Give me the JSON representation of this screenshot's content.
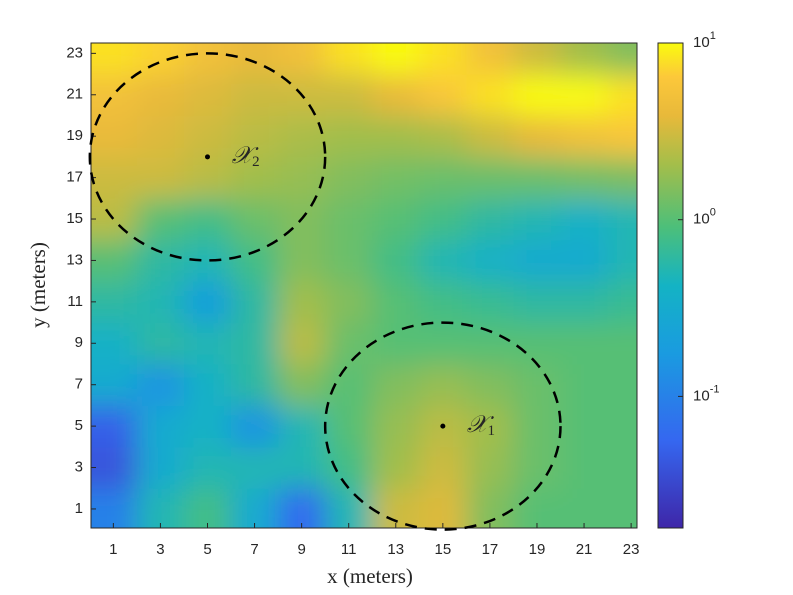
{
  "chart_data": {
    "type": "heatmap",
    "x_label": "x (meters)",
    "y_label": "y (meters)",
    "x": [
      1,
      3,
      5,
      7,
      9,
      11,
      13,
      15,
      17,
      19,
      21,
      23
    ],
    "y": [
      1,
      3,
      5,
      7,
      9,
      11,
      13,
      15,
      17,
      19,
      21,
      23
    ],
    "z": [
      [
        0.1,
        0.5,
        0.8,
        0.3,
        0.06,
        0.5,
        3,
        3.5,
        1.5,
        1,
        1,
        1
      ],
      [
        0.04,
        0.3,
        0.5,
        0.5,
        0.5,
        0.8,
        2,
        3,
        1.8,
        1.2,
        1,
        1
      ],
      [
        0.05,
        0.3,
        0.4,
        0.15,
        0.5,
        1,
        1.8,
        2.5,
        2,
        1.2,
        1,
        1
      ],
      [
        0.3,
        0.15,
        0.4,
        0.6,
        1.5,
        1,
        1.5,
        1.8,
        1.5,
        1.2,
        1,
        1
      ],
      [
        0.4,
        0.6,
        0.5,
        0.6,
        2.5,
        1.2,
        1,
        1,
        1,
        1,
        1,
        1
      ],
      [
        0.6,
        0.5,
        0.2,
        0.6,
        2,
        1.5,
        1,
        0.8,
        0.7,
        0.6,
        0.6,
        0.7
      ],
      [
        1,
        0.6,
        0.5,
        0.8,
        1.5,
        1.2,
        0.8,
        0.5,
        0.4,
        0.3,
        0.3,
        0.5
      ],
      [
        2.5,
        1,
        0.8,
        1.2,
        1.5,
        1.2,
        1,
        0.8,
        0.6,
        0.5,
        0.4,
        0.5
      ],
      [
        3,
        3,
        2.5,
        2,
        1.8,
        1.5,
        1.3,
        1.2,
        1.2,
        1.2,
        1.3,
        1.4
      ],
      [
        4,
        3.5,
        3,
        2.5,
        2.2,
        2,
        2,
        2.2,
        3,
        4,
        5,
        6
      ],
      [
        5,
        4,
        3.5,
        3,
        3,
        3,
        4,
        6,
        8,
        10,
        10,
        8
      ],
      [
        8,
        7,
        5,
        4,
        5,
        8,
        10,
        8,
        5,
        3,
        2,
        1.5
      ]
    ],
    "colormap": "parula",
    "color_scale": "log",
    "clim": [
      0.018,
      10
    ],
    "colorbar_ticks": [
      {
        "value": 0.1,
        "label": "10^-1"
      },
      {
        "value": 1,
        "label": "10^0"
      },
      {
        "value": 10,
        "label": "10^1"
      }
    ],
    "xlim": [
      0.05,
      23.25
    ],
    "ylim": [
      0.08,
      23.5
    ],
    "xticks": [
      1,
      3,
      5,
      7,
      9,
      11,
      13,
      15,
      17,
      19,
      21,
      23
    ],
    "yticks": [
      1,
      3,
      5,
      7,
      9,
      11,
      13,
      15,
      17,
      19,
      21,
      23
    ],
    "circles": [
      {
        "center": [
          15,
          5
        ],
        "radius": 5,
        "label": "𝒳",
        "subscript": "1"
      },
      {
        "center": [
          5,
          18
        ],
        "radius": 5,
        "label": "𝒳",
        "subscript": "2"
      }
    ]
  }
}
